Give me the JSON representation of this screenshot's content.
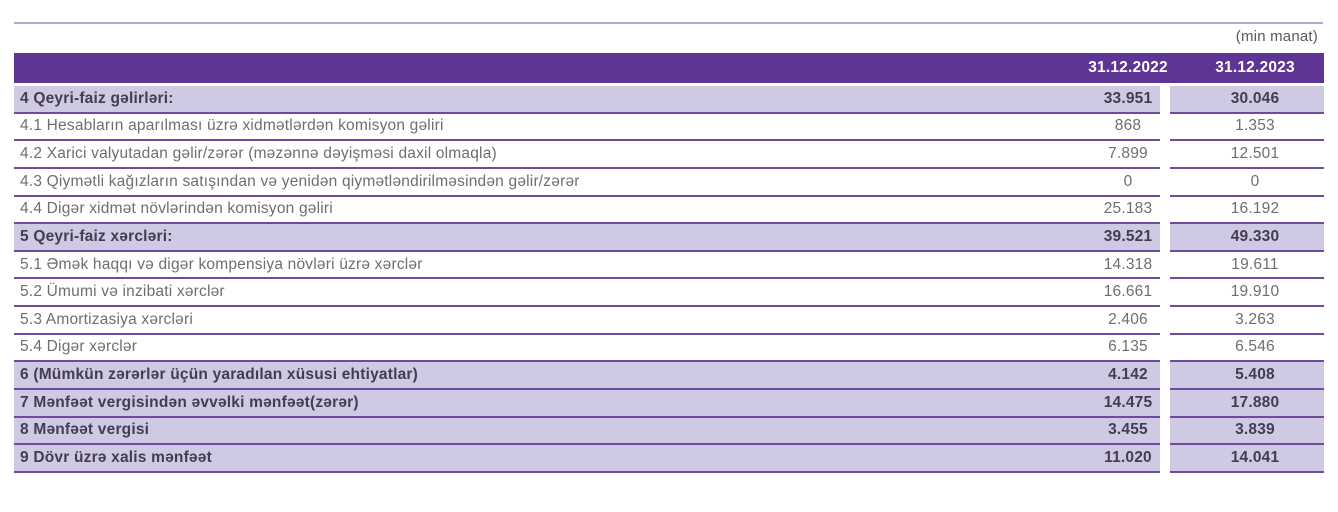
{
  "meta": {
    "unit_note": "(min manat)"
  },
  "table": {
    "columns": [
      "31.12.2022",
      "31.12.2023"
    ],
    "rows": [
      {
        "type": "section",
        "label": "4 Qeyri-faiz gəlirləri:",
        "v2022": "33.951",
        "v2023": "30.046"
      },
      {
        "type": "detail",
        "label": "4.1 Hesabların aparılması üzrə xidmətlərdən komisyon gəliri",
        "v2022": "868",
        "v2023": "1.353"
      },
      {
        "type": "detail",
        "label": "4.2 Xarici valyutadan gəlir/zərər (məzənnə dəyişməsi daxil olmaqla)",
        "v2022": "7.899",
        "v2023": "12.501"
      },
      {
        "type": "detail",
        "label": "4.3 Qiymətli kağızların satışından və yenidən qiymətləndirilməsindən gəlir/zərər",
        "v2022": "0",
        "v2023": "0"
      },
      {
        "type": "detail",
        "label": "4.4 Digər xidmət növlərindən komisyon gəliri",
        "v2022": "25.183",
        "v2023": "16.192"
      },
      {
        "type": "section",
        "label": "5 Qeyri-faiz xərcləri:",
        "v2022": "39.521",
        "v2023": "49.330"
      },
      {
        "type": "detail",
        "label": "5.1 Əmək haqqı və digər kompensiya növləri üzrə xərclər",
        "v2022": "14.318",
        "v2023": "19.611"
      },
      {
        "type": "detail",
        "label": "5.2 Ümumi və inzibati xərclər",
        "v2022": "16.661",
        "v2023": "19.910"
      },
      {
        "type": "detail",
        "label": "5.3 Amortizasiya xərcləri",
        "v2022": "2.406",
        "v2023": "3.263"
      },
      {
        "type": "detail",
        "label": "5.4 Digər xərclər",
        "v2022": "6.135",
        "v2023": "6.546"
      },
      {
        "type": "section",
        "label": "6 (Mümkün zərərlər üçün yaradılan xüsusi ehtiyatlar)",
        "v2022": "4.142",
        "v2023": "5.408"
      },
      {
        "type": "section",
        "label": "7 Mənfəət vergisindən əvvəlki mənfəət(zərər)",
        "v2022": "14.475",
        "v2023": "17.880"
      },
      {
        "type": "section",
        "label": "8 Mənfəət vergisi",
        "v2022": "3.455",
        "v2023": "3.839"
      },
      {
        "type": "section",
        "label": "9 Dövr üzrə xalis mənfəət",
        "v2022": "11.020",
        "v2023": "14.041"
      }
    ]
  },
  "colors": {
    "header_bg": "#5e3494",
    "section_row_bg": "#cfc9e3",
    "separator_line": "#6e4b9d",
    "top_rule": "#b3a6d1",
    "detail_text": "#6d6e71",
    "section_text": "#433d52",
    "header_text": "#ffffff",
    "unit_note_text": "#58595b"
  }
}
